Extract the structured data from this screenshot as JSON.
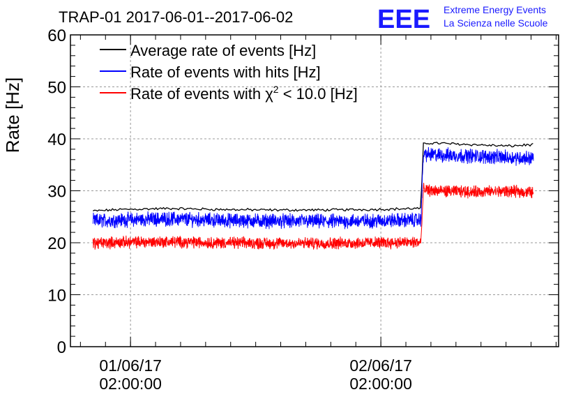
{
  "chart_data": {
    "type": "line",
    "title": "TRAP-01 2017-06-01--2017-06-02",
    "ylabel": "Rate [Hz]",
    "xlabel": "",
    "ylim": [
      0,
      60
    ],
    "xlim_hours": [
      0,
      39
    ],
    "y_ticks": [
      "0",
      "10",
      "20",
      "30",
      "40",
      "50",
      "60"
    ],
    "x_ticks": [
      {
        "hour": 4.8,
        "date": "01/06/17",
        "time": "02:00:00"
      },
      {
        "hour": 24.8,
        "date": "02/06/17",
        "time": "02:00:00"
      }
    ],
    "grid": true,
    "legend_position": "top-left",
    "series": [
      {
        "name": "Average rate of events [Hz]",
        "color": "#000000",
        "noise": 0.2,
        "x": [
          1.8,
          4,
          8,
          12,
          16,
          20,
          24,
          28.0,
          28.2,
          29,
          32,
          35,
          37
        ],
        "y": [
          26.1,
          26.4,
          26.6,
          26.4,
          26.3,
          26.3,
          26.4,
          26.6,
          39.1,
          39.2,
          38.9,
          38.6,
          38.9
        ]
      },
      {
        "name": "Rate of events with hits [Hz]",
        "color": "#0000ff",
        "noise": 1.1,
        "x": [
          1.8,
          4,
          8,
          12,
          16,
          20,
          24,
          28.0,
          28.2,
          29,
          32,
          35,
          37
        ],
        "y": [
          24.2,
          24.4,
          24.6,
          24.3,
          24.2,
          24.1,
          24.2,
          24.4,
          37.0,
          36.9,
          36.7,
          36.4,
          36.3
        ]
      },
      {
        "name": "Rate of events with χ² < 10.0 [Hz]",
        "legend_prefix": "Rate of events with ",
        "legend_chi": "χ",
        "legend_sup": "2",
        "legend_suffix": " < 10.0 [Hz]",
        "color": "#ff0000",
        "noise": 0.9,
        "x": [
          1.8,
          4,
          8,
          12,
          16,
          20,
          24,
          28.0,
          28.2,
          29,
          32,
          35,
          37
        ],
        "y": [
          19.9,
          20.1,
          20.2,
          20.0,
          19.9,
          19.9,
          20.0,
          20.1,
          30.2,
          30.0,
          29.8,
          29.9,
          29.7
        ]
      }
    ]
  },
  "logo": {
    "mark": "EEE",
    "line1": "Extreme Energy Events",
    "line2": "La Scienza nelle Scuole",
    "color": "#1a1aff"
  }
}
